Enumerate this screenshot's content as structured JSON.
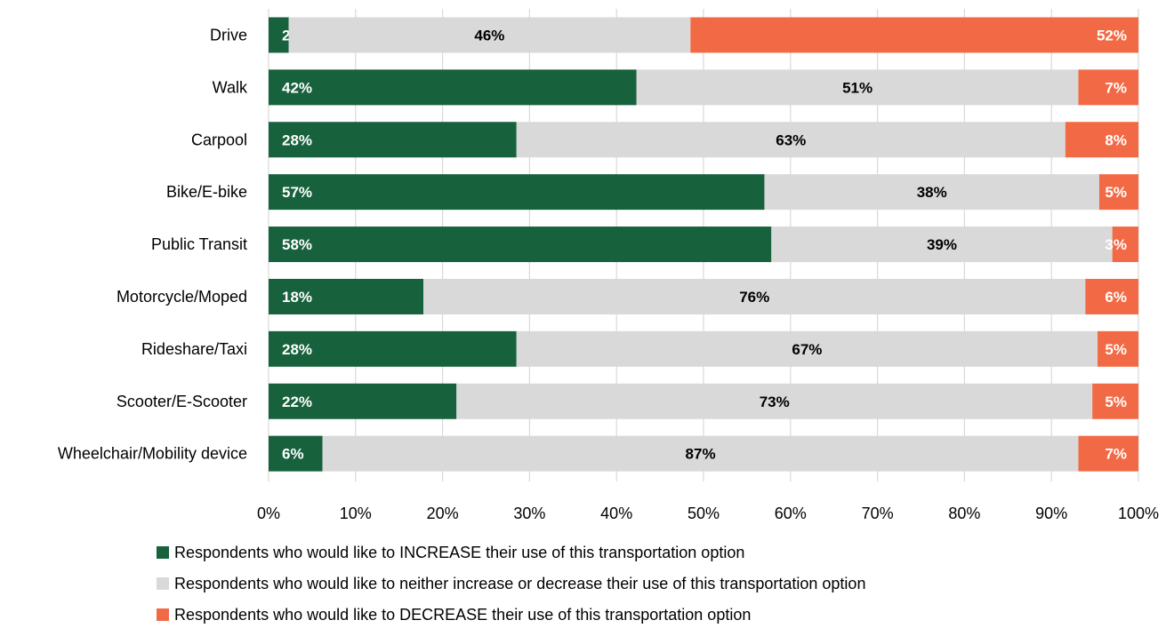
{
  "chart_data": {
    "type": "bar",
    "orientation": "horizontal",
    "stacked": true,
    "categories": [
      "Drive",
      "Walk",
      "Carpool",
      "Bike/E-bike",
      "Public Transit",
      "Motorcycle/Moped",
      "Rideshare/Taxi",
      "Scooter/E-Scooter",
      "Wheelchair/Mobility device"
    ],
    "series": [
      {
        "name": "Respondents who would like to INCREASE their use of this transportation option",
        "color": "#17613c",
        "label_color": "#ffffff",
        "values": [
          2.3,
          42.3,
          28.5,
          57,
          57.8,
          17.8,
          28.5,
          21.6,
          6.2
        ],
        "labels": [
          "2%",
          "42%",
          "28%",
          "57%",
          "58%",
          "18%",
          "28%",
          "22%",
          "6%"
        ]
      },
      {
        "name": "Respondents who would like to neither increase or decrease their use of this transportation option",
        "color": "#d9d9d9",
        "label_color": "#000000",
        "values": [
          46.2,
          50.8,
          63.1,
          38.5,
          39.2,
          76.1,
          66.8,
          73.1,
          86.9
        ],
        "labels": [
          "46%",
          "51%",
          "63%",
          "38%",
          "39%",
          "76%",
          "67%",
          "73%",
          "87%"
        ]
      },
      {
        "name": "Respondents who would like to DECREASE their use of this transportation option",
        "color": "#f26a45",
        "label_color": "#ffffff",
        "values": [
          51.5,
          6.9,
          8.4,
          4.5,
          3.0,
          6.1,
          4.7,
          5.3,
          6.9
        ],
        "labels": [
          "52%",
          "7%",
          "8%",
          "5%",
          "3%",
          "6%",
          "5%",
          "5%",
          "7%"
        ]
      }
    ],
    "xlim": [
      0,
      100
    ],
    "x_ticks": [
      "0%",
      "10%",
      "20%",
      "30%",
      "40%",
      "50%",
      "60%",
      "70%",
      "80%",
      "90%",
      "100%"
    ],
    "grid": true,
    "legend_position": "bottom"
  }
}
